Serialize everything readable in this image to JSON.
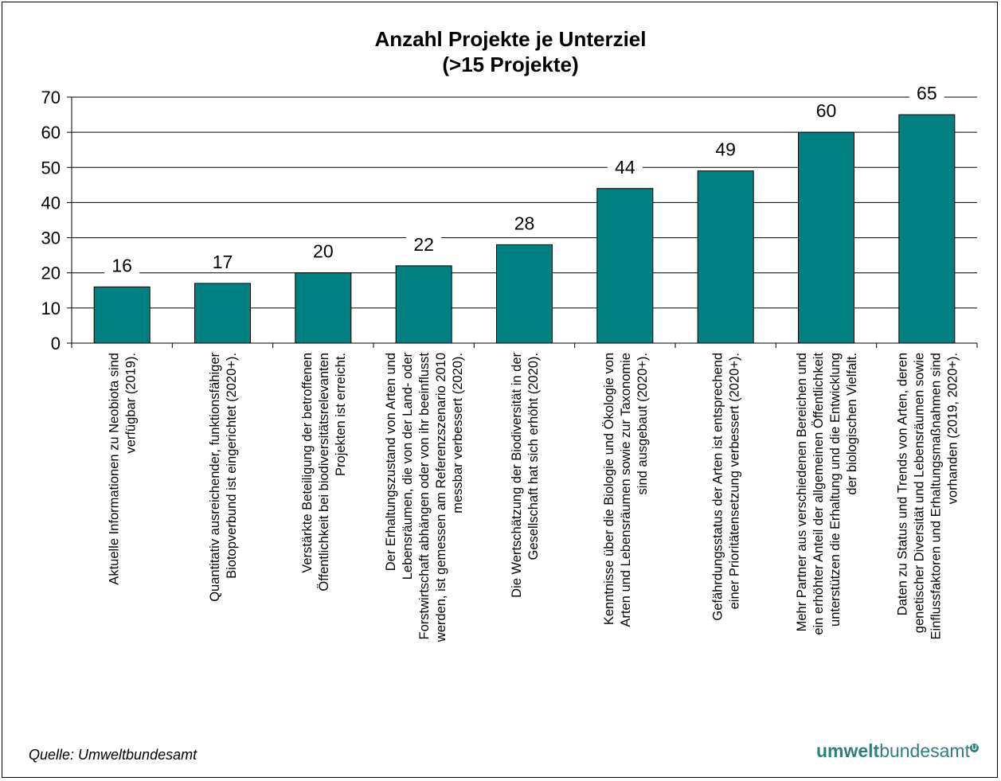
{
  "chart_data": {
    "type": "bar",
    "title_lines": [
      "Anzahl Projekte je Unterziel",
      "(>15 Projekte)"
    ],
    "ylim": [
      0,
      70
    ],
    "yticks": [
      0,
      10,
      20,
      30,
      40,
      50,
      60,
      70
    ],
    "grid": true,
    "bar_color": "#008080",
    "values": [
      16,
      17,
      20,
      22,
      28,
      44,
      49,
      60,
      65
    ],
    "categories": [
      [
        "Aktuelle Informationen zu Neobiota sind",
        "verfügbar (2019)."
      ],
      [
        "Quantitativ ausreichender, funktionsfähiger",
        "Biotopverbund ist eingerichtet (2020+)."
      ],
      [
        "Verstärkte Beteiligung der betroffenen",
        "Öffentlichkeit bei biodiversitätsrelevanten",
        "Projekten ist erreicht."
      ],
      [
        "Der Erhaltungszustand von Arten und",
        "Lebensräumen, die von der Land- oder",
        "Forstwirtschaft abhängen oder von ihr beeinflusst",
        "werden, ist gemessen am Referenzszenario 2010",
        "messbar verbessert (2020)."
      ],
      [
        "Die Wertschätzung der Biodiversität in der",
        "Gesellschaft hat sich erhöht (2020)."
      ],
      [
        "Kenntnisse über die Biologie und Ökologie von",
        "Arten und Lebensräumen sowie zur Taxonomie",
        "sind ausgebaut (2020+)."
      ],
      [
        "Gefährdungsstatus der Arten ist entsprechend",
        "einer Prioritätensetzung verbessert (2020+)."
      ],
      [
        "Mehr Partner aus verschiedenen Bereichen und",
        "ein erhöhter Anteil der allgemeinen Öffentlichkeit",
        "unterstützen die Erhaltung und die Entwicklung",
        "der biologischen Vielfalt."
      ],
      [
        "Daten zu Status und Trends von Arten, deren",
        "genetischer Diversität und Lebensräumen sowie",
        "Einflussfaktoren und Erhaltungsmaßnahmen sind",
        "vorhanden (2019, 2020+)."
      ]
    ]
  },
  "footer": {
    "source": "Quelle: Umweltbundesamt",
    "logo_strong": "umwelt",
    "logo_light": "bundesamt",
    "logo_mark": "U"
  }
}
